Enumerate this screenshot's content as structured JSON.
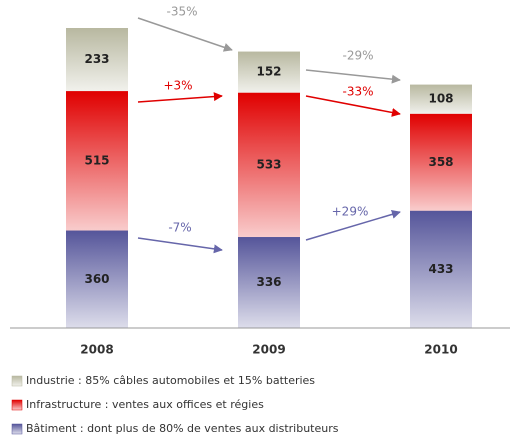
{
  "chart_data": {
    "type": "stacked-bar",
    "categories": [
      "2008",
      "2009",
      "2010"
    ],
    "series": [
      {
        "name": "Bâtiment : dont plus de 80% de ventes aux distributeurs",
        "color": "#55559a",
        "values": [
          360,
          336,
          433
        ]
      },
      {
        "name": "Infrastructure : ventes aux offices et régies",
        "color": "#e00000",
        "values": [
          515,
          533,
          358
        ]
      },
      {
        "name": "Industrie : 85% câbles automobiles et 15% batteries",
        "color": "#b8b8a0",
        "values": [
          233,
          152,
          108
        ]
      }
    ],
    "annotations": [
      {
        "text": "-35%",
        "color": "#999999"
      },
      {
        "text": "-29%",
        "color": "#999999"
      },
      {
        "text": "+3%",
        "color": "#e00000"
      },
      {
        "text": "-33%",
        "color": "#e00000"
      },
      {
        "text": "-7%",
        "color": "#6666aa"
      },
      {
        "text": "+29%",
        "color": "#6666aa"
      }
    ]
  }
}
